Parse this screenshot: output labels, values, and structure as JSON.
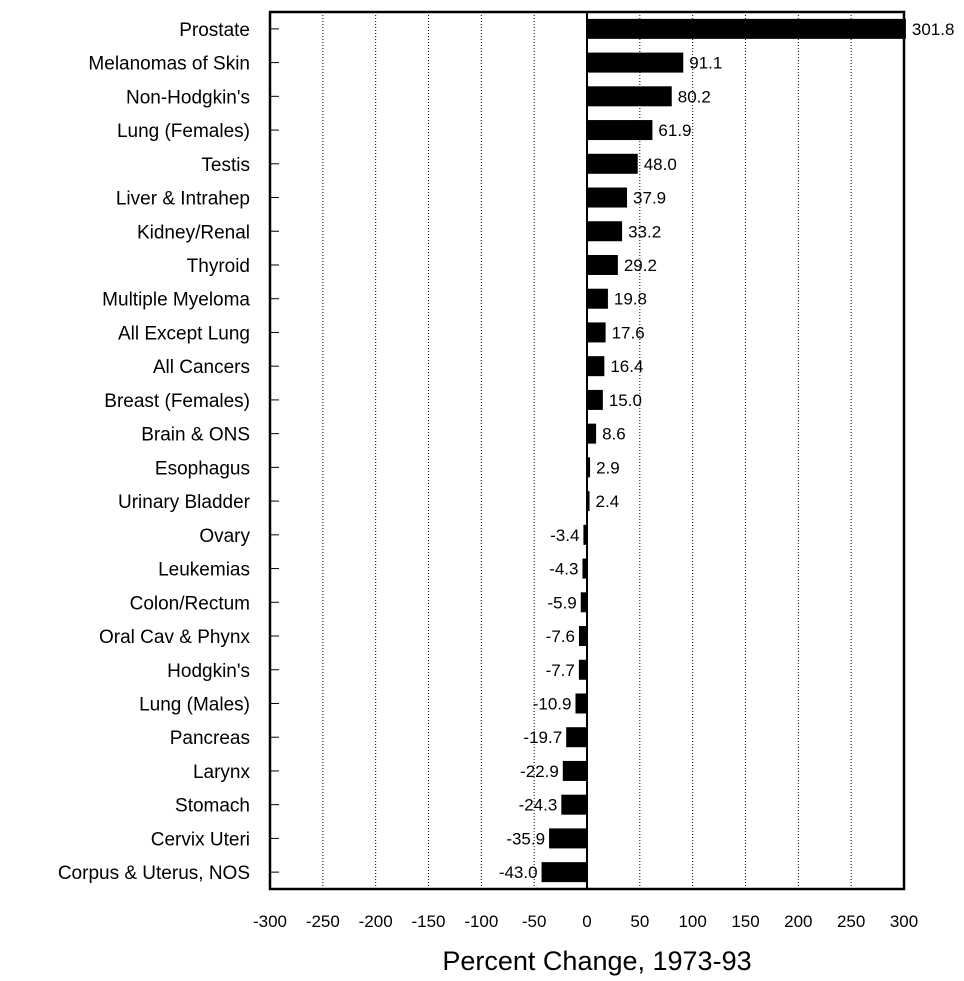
{
  "chart_data": {
    "type": "bar",
    "orientation": "horizontal",
    "title": "",
    "xlabel": "Percent Change, 1973-93",
    "ylabel": "",
    "xlim": [
      -300,
      300
    ],
    "xticks": [
      -300,
      -250,
      -200,
      -150,
      -100,
      -50,
      0,
      50,
      100,
      150,
      200,
      250,
      300
    ],
    "grid": "vertical dotted",
    "bar_color": "#000000",
    "categories": [
      "Prostate",
      "Melanomas of Skin",
      "Non-Hodgkin's",
      "Lung (Females)",
      "Testis",
      "Liver & Intrahep",
      "Kidney/Renal",
      "Thyroid",
      "Multiple Myeloma",
      "All Except Lung",
      "All Cancers",
      "Breast (Females)",
      "Brain & ONS",
      "Esophagus",
      "Urinary Bladder",
      "Ovary",
      "Leukemias",
      "Colon/Rectum",
      "Oral Cav & Phynx",
      "Hodgkin's",
      "Lung (Males)",
      "Pancreas",
      "Larynx",
      "Stomach",
      "Cervix Uteri",
      "Corpus & Uterus, NOS"
    ],
    "values": [
      301.8,
      91.1,
      80.2,
      61.9,
      48.0,
      37.9,
      33.2,
      29.2,
      19.8,
      17.6,
      16.4,
      15.0,
      8.6,
      2.9,
      2.4,
      -3.4,
      -4.3,
      -5.9,
      -7.6,
      -7.7,
      -10.9,
      -19.7,
      -22.9,
      -24.3,
      -35.9,
      -43.0
    ],
    "value_labels": [
      "301.8",
      "91.1",
      "80.2",
      "61.9",
      "48.0",
      "37.9",
      "33.2",
      "29.2",
      "19.8",
      "17.6",
      "16.4",
      "15.0",
      "8.6",
      "2.9",
      "2.4",
      "-3.4",
      "-4.3",
      "-5.9",
      "-7.6",
      "-7.7",
      "-10.9",
      "-19.7",
      "-22.9",
      "-24.3",
      "-35.9",
      "-43.0"
    ]
  }
}
